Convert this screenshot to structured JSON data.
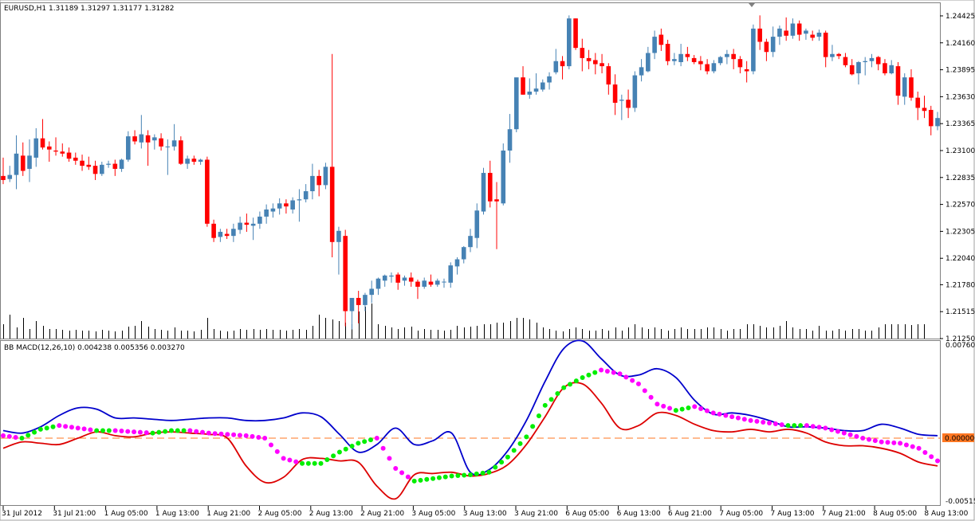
{
  "main_header": "EURUSD,H1  1.31189 1.31297 1.31177 1.31282",
  "sub_header": "BB MACD(12,26,10) 0.004238 0.005356 0.003270",
  "price_axis": [
    "1.24425",
    "1.24160",
    "1.23895",
    "1.23630",
    "1.23365",
    "1.23100",
    "1.22835",
    "1.22570",
    "1.22305",
    "1.22040",
    "1.21780",
    "1.21515",
    "1.21250"
  ],
  "sub_axis": {
    "top": "0.007602",
    "zero": "0.000000",
    "bottom": "-0.005159"
  },
  "time_axis": [
    "31 Jul 2012",
    "31 Jul 21:00",
    "1 Aug 05:00",
    "1 Aug 13:00",
    "1 Aug 21:00",
    "2 Aug 05:00",
    "2 Aug 13:00",
    "2 Aug 21:00",
    "3 Aug 05:00",
    "3 Aug 13:00",
    "3 Aug 21:00",
    "6 Aug 05:00",
    "6 Aug 13:00",
    "6 Aug 21:00",
    "7 Aug 05:00",
    "7 Aug 13:00",
    "7 Aug 21:00",
    "8 Aug 05:00",
    "8 Aug 13:00"
  ],
  "colors": {
    "bull": "#4682b4",
    "bear": "#ff0000",
    "upper_band": "#0000cc",
    "lower_band": "#dd0000",
    "dot_up": "#00ee00",
    "dot_down": "#ff00ff",
    "zero_line": "#ff7722",
    "zero_tag": "#ff7722"
  },
  "chart_data": [
    {
      "type": "candlestick",
      "symbol": "EURUSD",
      "timeframe": "H1",
      "ylim": [
        1.2125,
        1.2455
      ],
      "volume_bars": true,
      "candles_ohlc": [
        [
          1.2285,
          1.2303,
          1.2277,
          1.2281
        ],
        [
          1.2282,
          1.2295,
          1.2279,
          1.2286
        ],
        [
          1.2286,
          1.2325,
          1.2272,
          1.2307
        ],
        [
          1.2305,
          1.2318,
          1.2285,
          1.229
        ],
        [
          1.2292,
          1.2321,
          1.2279,
          1.2305
        ],
        [
          1.2303,
          1.2332,
          1.2294,
          1.2322
        ],
        [
          1.2322,
          1.2341,
          1.2311,
          1.2313
        ],
        [
          1.2314,
          1.2319,
          1.2299,
          1.2311
        ],
        [
          1.231,
          1.2323,
          1.2305,
          1.2309
        ],
        [
          1.2309,
          1.2317,
          1.2304,
          1.2307
        ],
        [
          1.2308,
          1.2313,
          1.2299,
          1.2302
        ],
        [
          1.2303,
          1.2308,
          1.2296,
          1.23
        ],
        [
          1.23,
          1.2306,
          1.229,
          1.2295
        ],
        [
          1.2296,
          1.2304,
          1.2291,
          1.2294
        ],
        [
          1.2295,
          1.23,
          1.2281,
          1.2287
        ],
        [
          1.2287,
          1.2299,
          1.2285,
          1.2296
        ],
        [
          1.2296,
          1.23,
          1.2293,
          1.2297
        ],
        [
          1.2297,
          1.2301,
          1.2285,
          1.2292
        ],
        [
          1.2292,
          1.2302,
          1.2289,
          1.2301
        ],
        [
          1.2301,
          1.2329,
          1.2299,
          1.2324
        ],
        [
          1.2324,
          1.233,
          1.2316,
          1.2319
        ],
        [
          1.2318,
          1.2345,
          1.2312,
          1.2326
        ],
        [
          1.2325,
          1.233,
          1.2295,
          1.2318
        ],
        [
          1.232,
          1.2326,
          1.2311,
          1.2323
        ],
        [
          1.2322,
          1.2327,
          1.231,
          1.2314
        ],
        [
          1.2314,
          1.2321,
          1.2286,
          1.2314
        ],
        [
          1.2314,
          1.2336,
          1.231,
          1.232
        ],
        [
          1.232,
          1.2324,
          1.2296,
          1.2297
        ],
        [
          1.2297,
          1.2305,
          1.2292,
          1.2302
        ],
        [
          1.2302,
          1.2305,
          1.2296,
          1.2299
        ],
        [
          1.2299,
          1.2302,
          1.2296,
          1.2301
        ],
        [
          1.2301,
          1.2304,
          1.2235,
          1.2238
        ],
        [
          1.2238,
          1.2242,
          1.222,
          1.2224
        ],
        [
          1.2225,
          1.2233,
          1.222,
          1.223
        ],
        [
          1.2228,
          1.2233,
          1.2223,
          1.2226
        ],
        [
          1.2226,
          1.2238,
          1.222,
          1.2233
        ],
        [
          1.2232,
          1.2245,
          1.2228,
          1.2239
        ],
        [
          1.2239,
          1.2248,
          1.223,
          1.2237
        ],
        [
          1.2236,
          1.2244,
          1.2222,
          1.2238
        ],
        [
          1.2238,
          1.225,
          1.2233,
          1.2245
        ],
        [
          1.2245,
          1.2257,
          1.2238,
          1.2252
        ],
        [
          1.225,
          1.2258,
          1.2244,
          1.2253
        ],
        [
          1.2253,
          1.2263,
          1.2247,
          1.2258
        ],
        [
          1.2258,
          1.2262,
          1.2248,
          1.2255
        ],
        [
          1.2252,
          1.2264,
          1.2248,
          1.2261
        ],
        [
          1.2261,
          1.2272,
          1.224,
          1.2262
        ],
        [
          1.2262,
          1.2277,
          1.2259,
          1.227
        ],
        [
          1.227,
          1.2297,
          1.2262,
          1.2285
        ],
        [
          1.2285,
          1.2291,
          1.2265,
          1.2276
        ],
        [
          1.2276,
          1.2298,
          1.2272,
          1.2294
        ],
        [
          1.2294,
          1.2405,
          1.2205,
          1.222
        ],
        [
          1.222,
          1.2235,
          1.2188,
          1.2231
        ],
        [
          1.2226,
          1.2232,
          1.2137,
          1.2152
        ],
        [
          1.2152,
          1.2162,
          1.2134,
          1.2165
        ],
        [
          1.2165,
          1.2172,
          1.214,
          1.2158
        ],
        [
          1.2158,
          1.217,
          1.2152,
          1.2168
        ],
        [
          1.2168,
          1.2182,
          1.216,
          1.2174
        ],
        [
          1.2174,
          1.2185,
          1.2168,
          1.2184
        ],
        [
          1.2182,
          1.2188,
          1.2176,
          1.2187
        ],
        [
          1.2186,
          1.219,
          1.218,
          1.2187
        ],
        [
          1.2188,
          1.219,
          1.2173,
          1.218
        ],
        [
          1.2182,
          1.2187,
          1.2177,
          1.2185
        ],
        [
          1.2185,
          1.219,
          1.2176,
          1.2181
        ],
        [
          1.2181,
          1.2183,
          1.2164,
          1.2176
        ],
        [
          1.2176,
          1.2185,
          1.2174,
          1.2182
        ],
        [
          1.2181,
          1.2188,
          1.2176,
          1.2178
        ],
        [
          1.2178,
          1.2184,
          1.2176,
          1.2182
        ],
        [
          1.2181,
          1.2184,
          1.2175,
          1.2181
        ],
        [
          1.218,
          1.22,
          1.2175,
          1.2197
        ],
        [
          1.2196,
          1.2205,
          1.2188,
          1.2203
        ],
        [
          1.2203,
          1.2216,
          1.2199,
          1.2215
        ],
        [
          1.2215,
          1.2233,
          1.221,
          1.2226
        ],
        [
          1.2224,
          1.2258,
          1.2214,
          1.2251
        ],
        [
          1.225,
          1.2293,
          1.2247,
          1.2288
        ],
        [
          1.2288,
          1.23,
          1.2254,
          1.226
        ],
        [
          1.2262,
          1.2279,
          1.2213,
          1.226
        ],
        [
          1.2258,
          1.2317,
          1.2256,
          1.231
        ],
        [
          1.231,
          1.2346,
          1.2298,
          1.2331
        ],
        [
          1.2331,
          1.238,
          1.2328,
          1.2382
        ],
        [
          1.2382,
          1.2393,
          1.2365,
          1.2365
        ],
        [
          1.2365,
          1.2381,
          1.2361,
          1.2368
        ],
        [
          1.2368,
          1.2386,
          1.2365,
          1.2371
        ],
        [
          1.237,
          1.238,
          1.2368,
          1.2377
        ],
        [
          1.2377,
          1.2387,
          1.237,
          1.2383
        ],
        [
          1.2387,
          1.241,
          1.2385,
          1.2398
        ],
        [
          1.2398,
          1.2403,
          1.238,
          1.2393
        ],
        [
          1.2393,
          1.2443,
          1.239,
          1.244
        ],
        [
          1.244,
          1.244,
          1.2409,
          1.2411
        ],
        [
          1.2411,
          1.242,
          1.2388,
          1.2401
        ],
        [
          1.2401,
          1.2409,
          1.239,
          1.2398
        ],
        [
          1.2399,
          1.2406,
          1.2385,
          1.2395
        ],
        [
          1.2396,
          1.2405,
          1.2386,
          1.2393
        ],
        [
          1.2393,
          1.2396,
          1.2365,
          1.2375
        ],
        [
          1.2375,
          1.2385,
          1.2345,
          1.2357
        ],
        [
          1.2359,
          1.2365,
          1.234,
          1.236
        ],
        [
          1.236,
          1.237,
          1.2342,
          1.2352
        ],
        [
          1.2352,
          1.2388,
          1.2348,
          1.2384
        ],
        [
          1.2384,
          1.24,
          1.2378,
          1.2392
        ],
        [
          1.2388,
          1.2412,
          1.2387,
          1.2406
        ],
        [
          1.2406,
          1.2428,
          1.24,
          1.2422
        ],
        [
          1.2424,
          1.243,
          1.2408,
          1.2414
        ],
        [
          1.2415,
          1.2419,
          1.2394,
          1.2398
        ],
        [
          1.2398,
          1.2406,
          1.2394,
          1.24
        ],
        [
          1.2397,
          1.2415,
          1.2393,
          1.2405
        ],
        [
          1.2405,
          1.2412,
          1.2398,
          1.2402
        ],
        [
          1.2401,
          1.2404,
          1.2395,
          1.2397
        ],
        [
          1.2398,
          1.2403,
          1.2389,
          1.2395
        ],
        [
          1.2395,
          1.24,
          1.2385,
          1.2388
        ],
        [
          1.2388,
          1.2399,
          1.2386,
          1.2396
        ],
        [
          1.2396,
          1.2403,
          1.2394,
          1.2402
        ],
        [
          1.2402,
          1.2409,
          1.2395,
          1.2405
        ],
        [
          1.2405,
          1.241,
          1.239,
          1.24
        ],
        [
          1.24,
          1.2403,
          1.2386,
          1.2392
        ],
        [
          1.239,
          1.2398,
          1.2377,
          1.2388
        ],
        [
          1.2388,
          1.2434,
          1.2385,
          1.243
        ],
        [
          1.243,
          1.2443,
          1.2409,
          1.2417
        ],
        [
          1.2417,
          1.242,
          1.2398,
          1.2407
        ],
        [
          1.2407,
          1.2432,
          1.2402,
          1.2422
        ],
        [
          1.2422,
          1.2433,
          1.2414,
          1.243
        ],
        [
          1.2428,
          1.2441,
          1.2418,
          1.2423
        ],
        [
          1.2423,
          1.244,
          1.242,
          1.2435
        ],
        [
          1.2435,
          1.2438,
          1.2418,
          1.2424
        ],
        [
          1.2425,
          1.243,
          1.2419,
          1.2428
        ],
        [
          1.2424,
          1.2428,
          1.2418,
          1.2421
        ],
        [
          1.2422,
          1.2429,
          1.2418,
          1.2426
        ],
        [
          1.2426,
          1.2428,
          1.2392,
          1.2402
        ],
        [
          1.2402,
          1.2414,
          1.2398,
          1.2405
        ],
        [
          1.2405,
          1.2406,
          1.24,
          1.2403
        ],
        [
          1.2402,
          1.2406,
          1.2392,
          1.2394
        ],
        [
          1.2394,
          1.24,
          1.2384,
          1.2385
        ],
        [
          1.2386,
          1.2398,
          1.2375,
          1.2397
        ],
        [
          1.2397,
          1.2402,
          1.2384,
          1.2398
        ],
        [
          1.2398,
          1.2405,
          1.2392,
          1.2401
        ],
        [
          1.2402,
          1.2403,
          1.2389,
          1.2395
        ],
        [
          1.2396,
          1.24,
          1.2384,
          1.2386
        ],
        [
          1.2386,
          1.2399,
          1.2385,
          1.2394
        ],
        [
          1.2393,
          1.2397,
          1.2355,
          1.2364
        ],
        [
          1.2363,
          1.2386,
          1.2355,
          1.2382
        ],
        [
          1.2382,
          1.239,
          1.2359,
          1.2362
        ],
        [
          1.2362,
          1.2368,
          1.234,
          1.2352
        ],
        [
          1.2352,
          1.2364,
          1.2342,
          1.2349
        ],
        [
          1.235,
          1.2354,
          1.2325,
          1.2334
        ],
        [
          1.2334,
          1.2348,
          1.233,
          1.2342
        ]
      ],
      "volumes": [
        18,
        30,
        14,
        26,
        12,
        22,
        16,
        12,
        12,
        11,
        10,
        11,
        10,
        10,
        9,
        11,
        10,
        9,
        10,
        15,
        16,
        22,
        15,
        12,
        11,
        10,
        14,
        10,
        10,
        9,
        11,
        26,
        12,
        10,
        9,
        10,
        12,
        11,
        12,
        11,
        12,
        11,
        11,
        10,
        11,
        12,
        11,
        16,
        30,
        26,
        24,
        22,
        20,
        18,
        34,
        40,
        44,
        18,
        16,
        14,
        12,
        14,
        15,
        10,
        12,
        11,
        11,
        10,
        11,
        16,
        14,
        15,
        16,
        18,
        18,
        20,
        20,
        22,
        26,
        26,
        24,
        20,
        14,
        12,
        10,
        9,
        12,
        14,
        12,
        10,
        10,
        12,
        10,
        14,
        10,
        14,
        18,
        14,
        12,
        14,
        12,
        10,
        12,
        14,
        12,
        12,
        12,
        14,
        14,
        12,
        10,
        12,
        12,
        18,
        18,
        16,
        14,
        14,
        16,
        22,
        14,
        12,
        12,
        10,
        16,
        10,
        10,
        12,
        10,
        12,
        12,
        10,
        10,
        14,
        18,
        18,
        18,
        18,
        17,
        18,
        18
      ],
      "y_ticks": [
        "1.24425",
        "1.24160",
        "1.23895",
        "1.23630",
        "1.23365",
        "1.23100",
        "1.22835",
        "1.22570",
        "1.22305",
        "1.22040",
        "1.21780",
        "1.21515",
        "1.21250"
      ]
    },
    {
      "type": "line",
      "title": "BB MACD(12,26,10) 0.004238 0.005356 0.003270",
      "ylim": [
        -0.0053,
        0.0077
      ],
      "zero_line": 0.0,
      "series": [
        {
          "role": "upper",
          "values": [
            0.0006,
            0.0004,
            0.0009,
            0.0018,
            0.0024,
            0.0023,
            0.0016,
            0.0016,
            0.0015,
            0.0014,
            0.0015,
            0.0016,
            0.0016,
            0.0014,
            0.0014,
            0.0016,
            0.002,
            0.0017,
            0.0003,
            -0.0011,
            -0.0005,
            0.0008,
            -0.0005,
            -0.0002,
            0.0004,
            -0.0027,
            -0.0025,
            -0.001,
            0.0014,
            0.0045,
            0.0071,
            0.0077,
            0.0063,
            0.005,
            0.005,
            0.0055,
            0.0048,
            0.003,
            0.0019,
            0.002,
            0.0018,
            0.0014,
            0.0009,
            0.0009,
            0.0008,
            0.0006,
            0.0006,
            0.0011,
            0.0008,
            0.0003,
            0.0002
          ]
        },
        {
          "role": "lower",
          "values": [
            -0.0008,
            -0.0003,
            -0.0004,
            -0.0005,
            0.0,
            0.0005,
            0.0002,
            0.0001,
            0.0004,
            0.0005,
            0.0004,
            0.0003,
            0.0,
            -0.0022,
            -0.0035,
            -0.0031,
            -0.0017,
            -0.0016,
            -0.0018,
            -0.0019,
            -0.0038,
            -0.0048,
            -0.0029,
            -0.0028,
            -0.0027,
            -0.003,
            -0.0028,
            -0.0021,
            -0.0005,
            0.0017,
            0.004,
            0.0043,
            0.0028,
            0.0008,
            0.001,
            0.002,
            0.0018,
            0.0011,
            0.0006,
            0.0005,
            0.0007,
            0.0005,
            0.0007,
            0.0004,
            -0.0003,
            -0.0006,
            -0.0006,
            -0.0008,
            -0.0012,
            -0.0019,
            -0.0022
          ]
        },
        {
          "role": "dots",
          "values": [
            0.0002,
            0.0,
            0.0007,
            0.001,
            0.0008,
            0.0006,
            0.0006,
            0.0005,
            0.0004,
            0.0006,
            0.0006,
            0.0004,
            0.0003,
            0.0002,
            0.0,
            -0.0016,
            -0.002,
            -0.002,
            -0.0011,
            -0.0004,
            0.0,
            -0.0024,
            -0.0034,
            -0.0032,
            -0.003,
            -0.0029,
            -0.0027,
            -0.0015,
            0.0001,
            0.0026,
            0.004,
            0.0048,
            0.0054,
            0.0051,
            0.0043,
            0.0027,
            0.0022,
            0.0025,
            0.002,
            0.0017,
            0.0014,
            0.0012,
            0.001,
            0.001,
            0.0008,
            0.0004,
            0.0,
            -0.0003,
            -0.0004,
            -0.0008,
            -0.0018
          ]
        }
      ],
      "y_ticks": [
        "0.007602",
        "0.000000",
        "-0.005159"
      ]
    }
  ]
}
